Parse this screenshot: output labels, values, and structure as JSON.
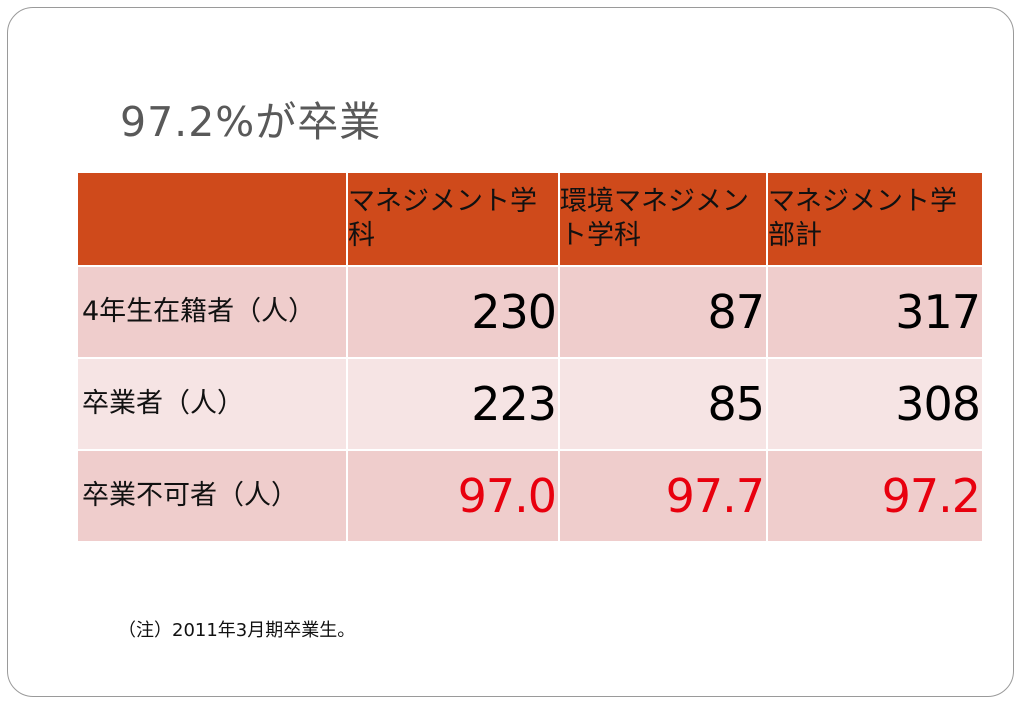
{
  "slide": {
    "title": "97.2%が卒業",
    "note": "（注）2011年3月期卒業生。"
  },
  "table": {
    "headers": [
      "",
      "マネジメント学科",
      "環境マネジメント学科",
      "マネジメント学部計"
    ],
    "rows": [
      {
        "label": "4年生在籍者（人）",
        "values": [
          "230",
          "87",
          "317"
        ],
        "highlight": false
      },
      {
        "label": "卒業者（人）",
        "values": [
          "223",
          "85",
          "308"
        ],
        "highlight": false
      },
      {
        "label": "卒業不可者（人）",
        "values": [
          "97.0",
          "97.7",
          "97.2"
        ],
        "highlight": true
      }
    ]
  },
  "colors": {
    "header_bg": "#cf4a1b",
    "row_dark": "#efcdcc",
    "row_light": "#f6e4e4",
    "highlight_text": "#e8000e"
  }
}
